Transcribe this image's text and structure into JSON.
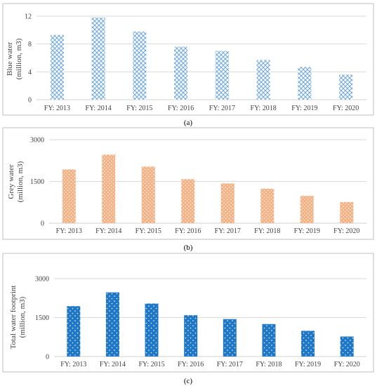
{
  "colors": {
    "blue_pattern": "#6fa8dc",
    "orange_pattern": "#f4b183",
    "dark_blue_pattern": "#1f77c8",
    "grid": "#d9d9d9",
    "border": "#bfbfbf"
  },
  "chart_data": [
    {
      "type": "bar",
      "caption": "(a)",
      "ylabel_lines": [
        "Blue water",
        "(million, m3)"
      ],
      "categories": [
        "FY: 2013",
        "FY: 2014",
        "FY: 2015",
        "FY: 2016",
        "FY: 2017",
        "FY: 2018",
        "FY: 2019",
        "FY: 2020"
      ],
      "values": [
        9.3,
        11.8,
        9.8,
        7.6,
        7.0,
        5.7,
        4.7,
        3.6
      ],
      "ylim": [
        0,
        12
      ],
      "yticks": [
        0,
        4,
        8,
        12
      ],
      "grid": true,
      "pattern": "diamond-lattice",
      "color": "#6fa8dc"
    },
    {
      "type": "bar",
      "caption": "(b)",
      "ylabel_lines": [
        "Grey water",
        "(million, m3)"
      ],
      "categories": [
        "FY: 2013",
        "FY: 2014",
        "FY: 2015",
        "FY: 2016",
        "FY: 2017",
        "FY: 2018",
        "FY: 2019",
        "FY: 2020"
      ],
      "values": [
        1930,
        2460,
        2030,
        1580,
        1430,
        1240,
        980,
        760
      ],
      "ylim": [
        0,
        3000
      ],
      "yticks": [
        0,
        1500,
        3000
      ],
      "grid": true,
      "pattern": "dots",
      "color": "#f4b183"
    },
    {
      "type": "bar",
      "caption": "(c)",
      "ylabel_lines": [
        "Total water footprint",
        "(million, m3)"
      ],
      "categories": [
        "FY: 2013",
        "FY: 2014",
        "FY: 2015",
        "FY: 2016",
        "FY: 2017",
        "FY: 2018",
        "FY: 2019",
        "FY: 2020"
      ],
      "values": [
        1940,
        2470,
        2040,
        1590,
        1440,
        1250,
        990,
        770
      ],
      "ylim": [
        0,
        3000
      ],
      "yticks": [
        0,
        1500,
        3000
      ],
      "grid": true,
      "pattern": "light-dots",
      "color": "#1f77c8"
    }
  ]
}
